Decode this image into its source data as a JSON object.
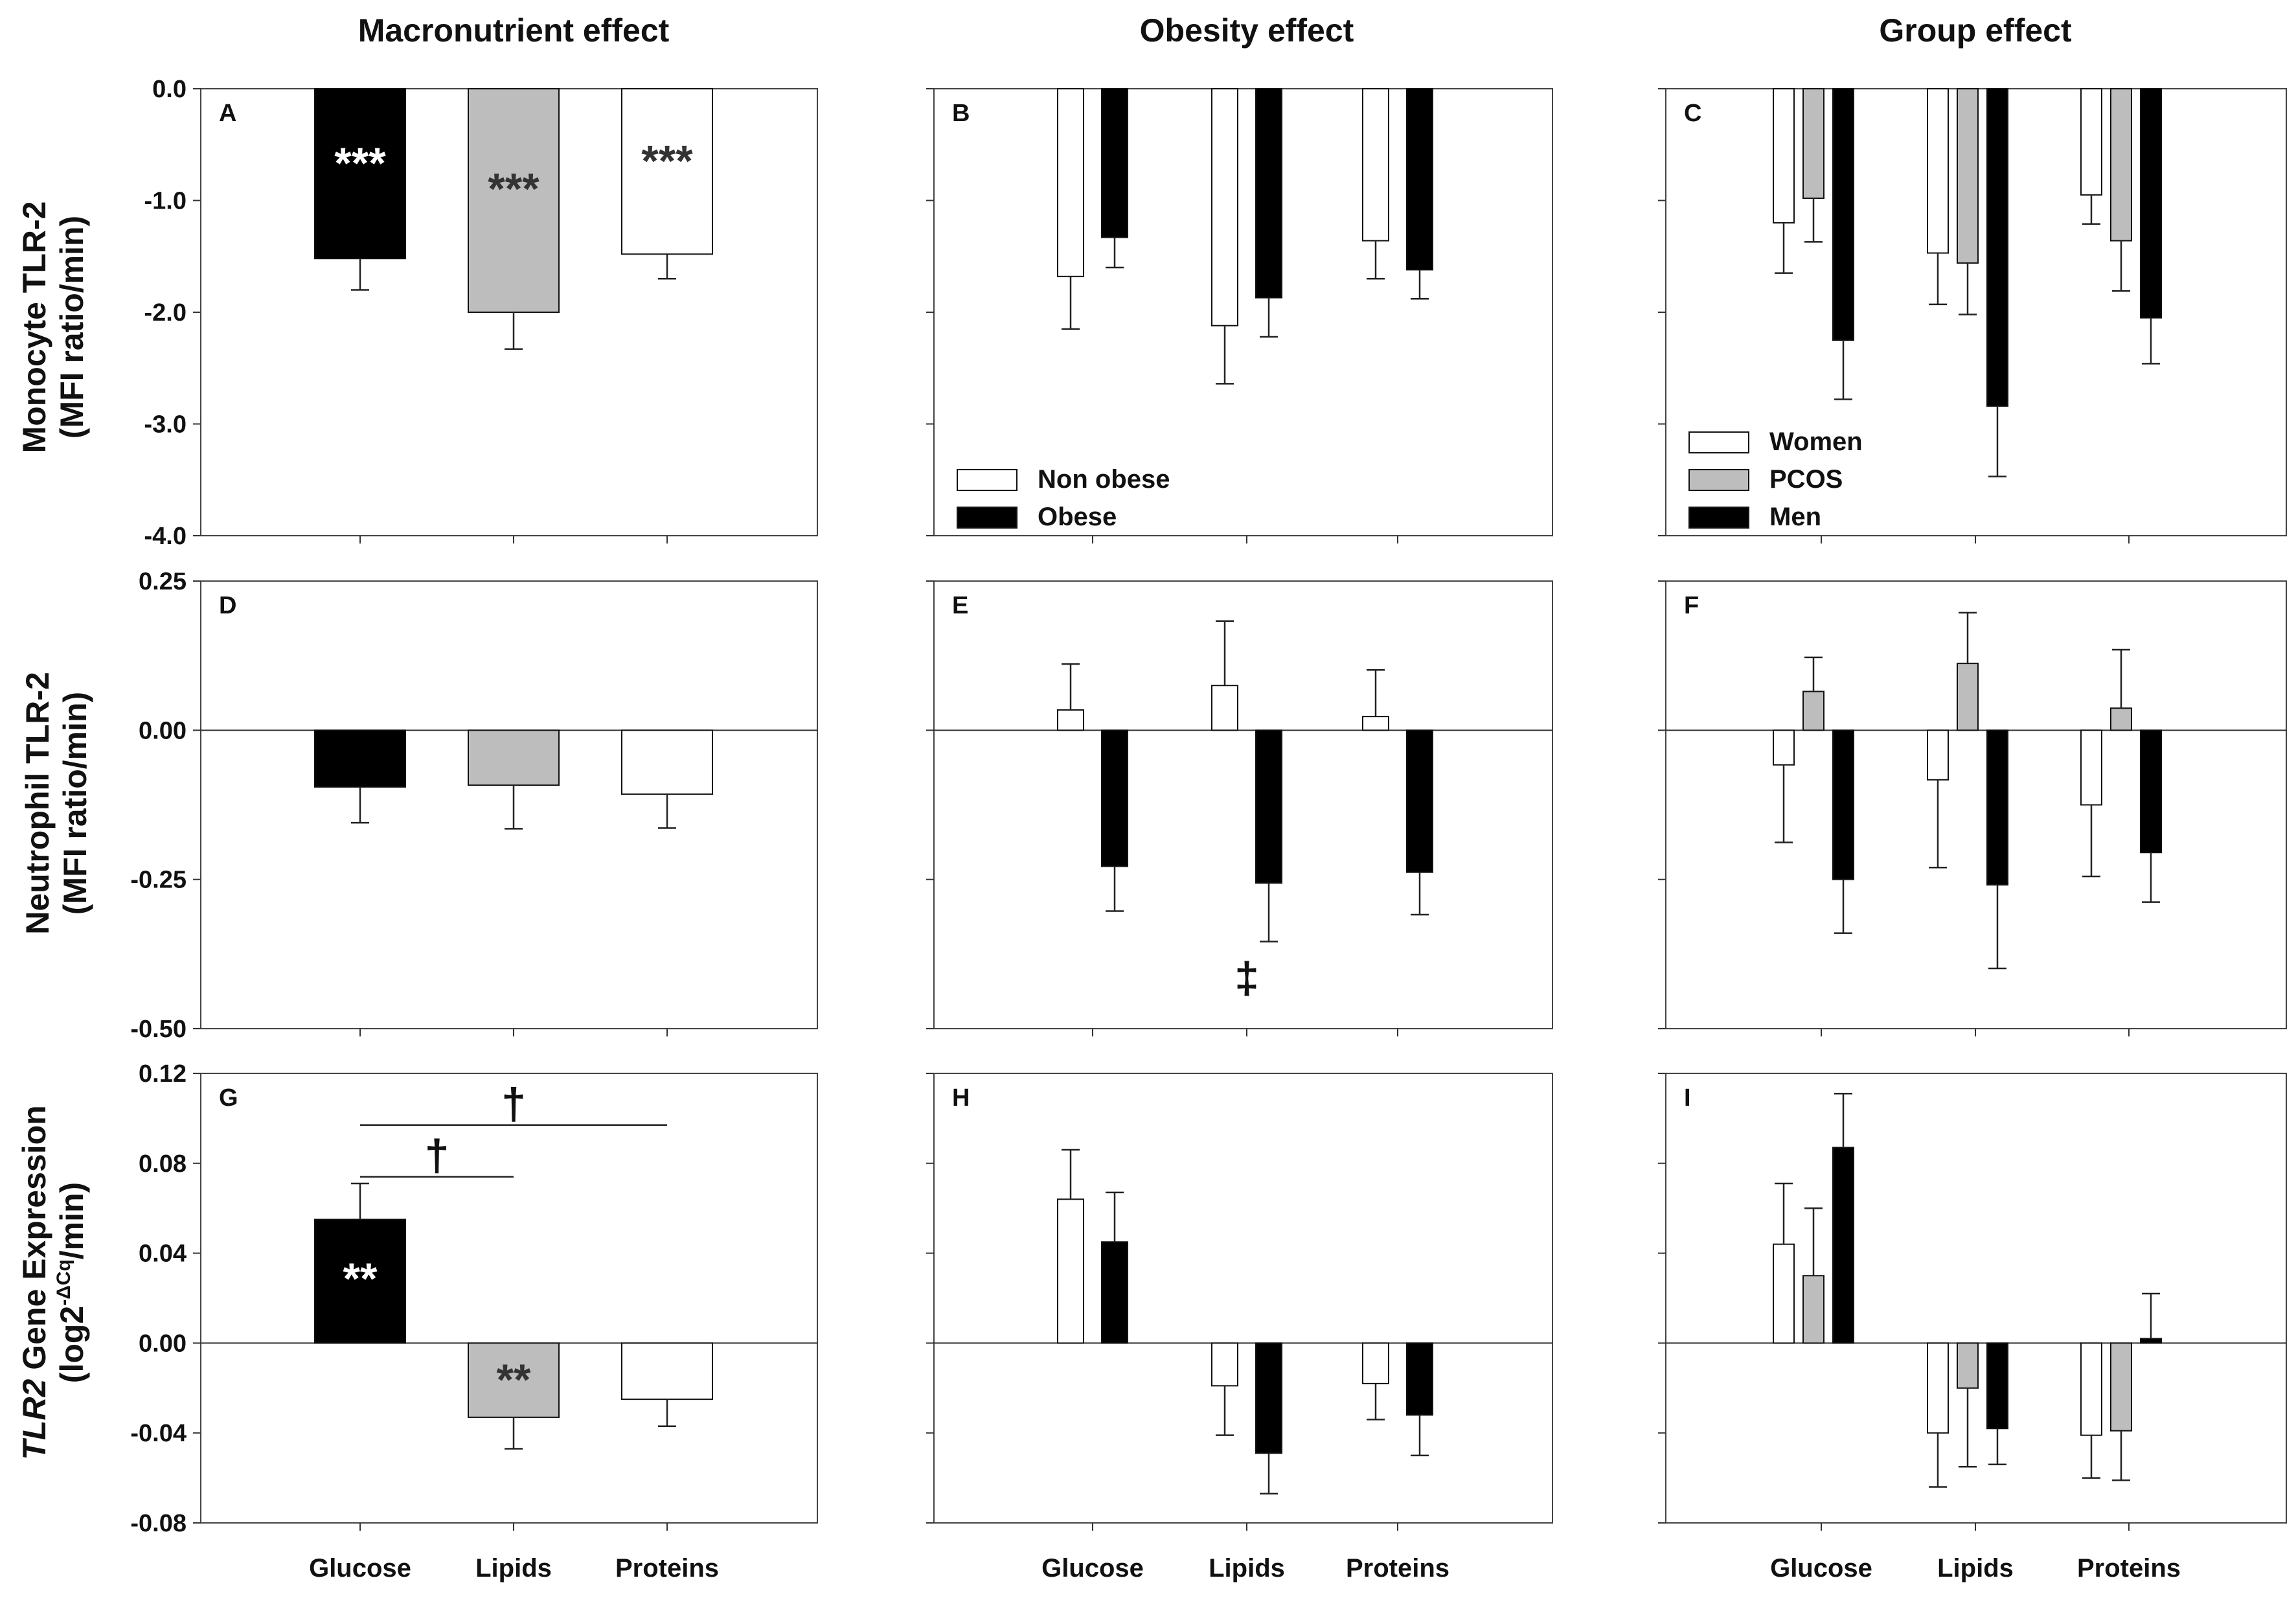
{
  "column_titles": [
    "Macronutrient effect",
    "Obesity effect",
    "Group effect"
  ],
  "row_ylabels": [
    {
      "line1": "Monocyte TLR-2",
      "line2": "(MFI ratio/min)"
    },
    {
      "line1": "Neutrophil TLR-2",
      "line2": "(MFI ratio/min)"
    },
    {
      "line1_italic": "TLR2",
      "line1_rest": " Gene Expression",
      "line2_pre": "(log2",
      "line2_sup": "-ΔCq",
      "line2_post": "/min)"
    }
  ],
  "categories": [
    "Glucose",
    "Lipids",
    "Proteins"
  ],
  "colors": {
    "black": "#000000",
    "gray": "#bdbdbd",
    "white": "#ffffff"
  },
  "chart_data": [
    {
      "panel": "A",
      "type": "bar",
      "ylim": [
        -4.0,
        0.0
      ],
      "yticks": [
        -4.0,
        -3.0,
        -2.0,
        -1.0,
        0.0
      ],
      "tick_labels": [
        "-4.0",
        "-3.0",
        "-2.0",
        "-1.0",
        "0.0"
      ],
      "series": [
        {
          "name": "Macronutrient",
          "per_category_colors": [
            "black",
            "gray",
            "white"
          ],
          "values": [
            -1.52,
            -2.0,
            -1.48
          ],
          "errors": [
            0.28,
            0.33,
            0.22
          ]
        }
      ],
      "annotations": [
        {
          "text": "***",
          "category": 0,
          "y": -0.8,
          "color": "#ffffff"
        },
        {
          "text": "***",
          "category": 1,
          "y": -1.03,
          "color": "#333333"
        },
        {
          "text": "***",
          "category": 2,
          "y": -0.78,
          "color": "#333333"
        }
      ]
    },
    {
      "panel": "B",
      "type": "bar",
      "ylim": [
        -4.0,
        0.0
      ],
      "yticks": [
        -4.0,
        -3.0,
        -2.0,
        -1.0,
        0.0
      ],
      "series": [
        {
          "name": "Non obese",
          "color": "white",
          "values": [
            -1.68,
            -2.12,
            -1.36
          ],
          "errors": [
            0.47,
            0.52,
            0.34
          ]
        },
        {
          "name": "Obese",
          "color": "black",
          "values": [
            -1.33,
            -1.87,
            -1.62
          ],
          "errors": [
            0.27,
            0.35,
            0.26
          ]
        }
      ],
      "legend": {
        "location": "bottom-left",
        "items": [
          "Non obese",
          "Obese"
        ]
      }
    },
    {
      "panel": "C",
      "type": "bar",
      "ylim": [
        -4.0,
        0.0
      ],
      "yticks": [
        -4.0,
        -3.0,
        -2.0,
        -1.0,
        0.0
      ],
      "series": [
        {
          "name": "Women",
          "color": "white",
          "values": [
            -1.2,
            -1.47,
            -0.95
          ],
          "errors": [
            0.45,
            0.46,
            0.26
          ]
        },
        {
          "name": "PCOS",
          "color": "gray",
          "values": [
            -0.98,
            -1.56,
            -1.36
          ],
          "errors": [
            0.39,
            0.46,
            0.45
          ]
        },
        {
          "name": "Men",
          "color": "black",
          "values": [
            -2.25,
            -2.84,
            -2.05
          ],
          "errors": [
            0.53,
            0.63,
            0.41
          ]
        }
      ],
      "legend": {
        "location": "bottom-left",
        "items": [
          "Women",
          "PCOS",
          "Men"
        ]
      }
    },
    {
      "panel": "D",
      "type": "bar",
      "ylim": [
        -0.5,
        0.25
      ],
      "yticks": [
        -0.5,
        -0.25,
        0.0,
        0.25
      ],
      "tick_labels": [
        "-0.50",
        "-0.25",
        "0.00",
        "0.25"
      ],
      "series": [
        {
          "name": "Macronutrient",
          "per_category_colors": [
            "black",
            "gray",
            "white"
          ],
          "values": [
            -0.095,
            -0.092,
            -0.107
          ],
          "errors": [
            0.06,
            0.073,
            0.057
          ]
        }
      ]
    },
    {
      "panel": "E",
      "type": "bar",
      "ylim": [
        -0.5,
        0.25
      ],
      "yticks": [
        -0.5,
        -0.25,
        0.0,
        0.25
      ],
      "series": [
        {
          "name": "Non obese",
          "color": "white",
          "values": [
            0.034,
            0.075,
            0.023
          ],
          "errors": [
            0.077,
            0.108,
            0.078
          ]
        },
        {
          "name": "Obese",
          "color": "black",
          "values": [
            -0.228,
            -0.256,
            -0.238
          ],
          "errors": [
            0.075,
            0.098,
            0.071
          ]
        }
      ],
      "annotations": [
        {
          "text": "‡",
          "category": 1,
          "y": -0.44,
          "color": "#111111"
        }
      ]
    },
    {
      "panel": "F",
      "type": "bar",
      "ylim": [
        -0.5,
        0.25
      ],
      "yticks": [
        -0.5,
        -0.25,
        0.0,
        0.25
      ],
      "series": [
        {
          "name": "Women",
          "color": "white",
          "values": [
            -0.058,
            -0.083,
            -0.125
          ],
          "errors": [
            0.13,
            0.147,
            0.12
          ]
        },
        {
          "name": "PCOS",
          "color": "gray",
          "values": [
            0.065,
            0.112,
            0.037
          ],
          "errors": [
            0.057,
            0.085,
            0.098
          ]
        },
        {
          "name": "Men",
          "color": "black",
          "values": [
            -0.25,
            -0.259,
            -0.205
          ],
          "errors": [
            0.09,
            0.14,
            0.083
          ]
        }
      ]
    },
    {
      "panel": "G",
      "type": "bar",
      "ylim": [
        -0.08,
        0.12
      ],
      "yticks": [
        -0.08,
        -0.04,
        0.0,
        0.04,
        0.08,
        0.12
      ],
      "tick_labels": [
        "-0.08",
        "-0.04",
        "0.00",
        "0.04",
        "0.08",
        "0.12"
      ],
      "series": [
        {
          "name": "Macronutrient",
          "per_category_colors": [
            "black",
            "gray",
            "white"
          ],
          "values": [
            0.055,
            -0.033,
            -0.025
          ],
          "errors": [
            0.016,
            0.014,
            0.012
          ]
        }
      ],
      "annotations": [
        {
          "text": "**",
          "category": 0,
          "y": 0.022,
          "color": "#ffffff"
        },
        {
          "text": "**",
          "category": 1,
          "y": -0.023,
          "color": "#333333"
        }
      ],
      "brackets": [
        {
          "from": 0,
          "to": 2,
          "y": 0.097,
          "symbol": "†"
        },
        {
          "from": 0,
          "to": 1,
          "y": 0.074,
          "symbol": "†"
        }
      ]
    },
    {
      "panel": "H",
      "type": "bar",
      "ylim": [
        -0.08,
        0.12
      ],
      "yticks": [
        -0.08,
        -0.04,
        0.0,
        0.04,
        0.08,
        0.12
      ],
      "series": [
        {
          "name": "Non obese",
          "color": "white",
          "values": [
            0.064,
            -0.019,
            -0.018
          ],
          "errors": [
            0.022,
            0.022,
            0.016
          ]
        },
        {
          "name": "Obese",
          "color": "black",
          "values": [
            0.045,
            -0.049,
            -0.032
          ],
          "errors": [
            0.022,
            0.018,
            0.018
          ]
        }
      ]
    },
    {
      "panel": "I",
      "type": "bar",
      "ylim": [
        -0.08,
        0.12
      ],
      "yticks": [
        -0.08,
        -0.04,
        0.0,
        0.04,
        0.08,
        0.12
      ],
      "series": [
        {
          "name": "Women",
          "color": "white",
          "values": [
            0.044,
            -0.04,
            -0.041
          ],
          "errors": [
            0.027,
            0.024,
            0.019
          ]
        },
        {
          "name": "PCOS",
          "color": "gray",
          "values": [
            0.03,
            -0.02,
            -0.039
          ],
          "errors": [
            0.03,
            0.035,
            0.022
          ]
        },
        {
          "name": "Men",
          "color": "black",
          "values": [
            0.087,
            -0.038,
            0.002
          ],
          "errors": [
            0.024,
            0.016,
            0.02
          ]
        }
      ]
    }
  ]
}
